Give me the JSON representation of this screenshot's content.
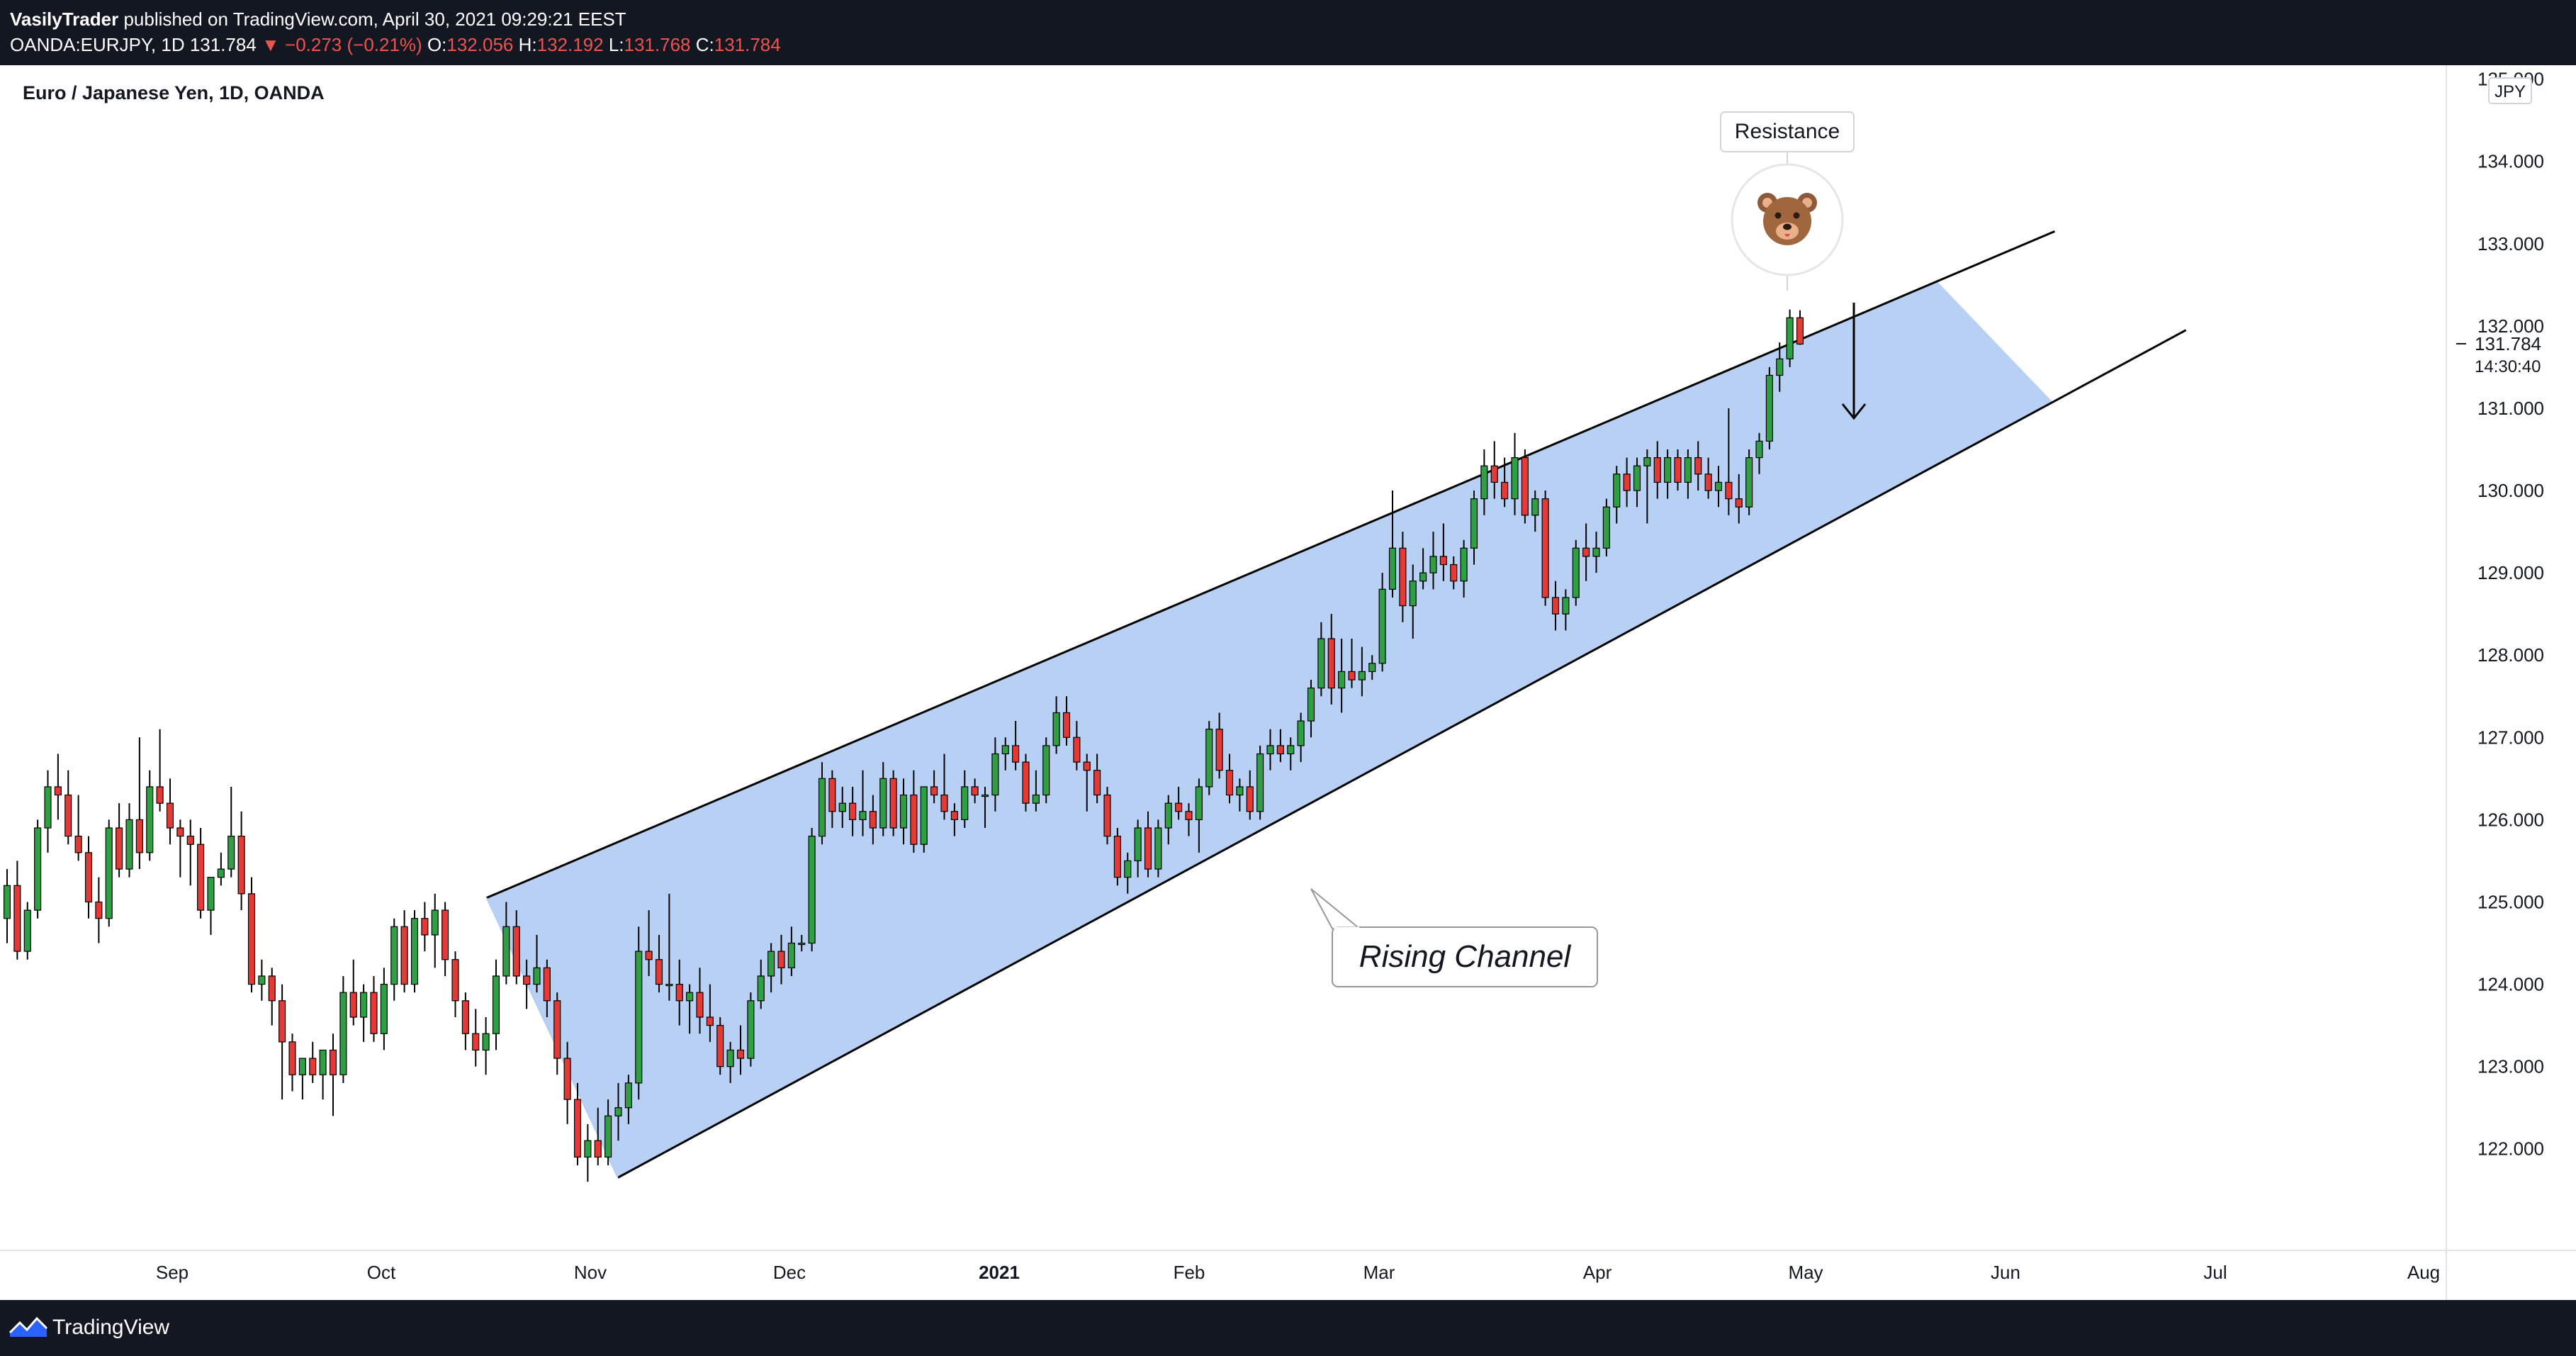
{
  "header": {
    "author": "VasilyTrader",
    "published_text": " published on TradingView.com, April 30, 2021 09:29:21 EEST",
    "symbol": "OANDA:EURJPY, 1D",
    "last": "131.784",
    "change": "▼ −0.273 (−0.21%)",
    "o_label": "O:",
    "o_value": "132.056",
    "h_label": "H:",
    "h_value": "132.192",
    "l_label": "L:",
    "l_value": "131.768",
    "c_label": "C:",
    "c_value": "131.784"
  },
  "footer": {
    "brand": "TradingView"
  },
  "chart_data": {
    "type": "candlestick",
    "title": "Euro / Japanese Yen, 1D, OANDA",
    "currency": "JPY",
    "y_ticks": [
      "122.000",
      "123.000",
      "124.000",
      "125.000",
      "126.000",
      "127.000",
      "128.000",
      "129.000",
      "130.000",
      "131.000",
      "132.000",
      "133.000",
      "134.000",
      "135.000"
    ],
    "y_range": [
      121.3,
      135.1
    ],
    "x_labels": [
      "Sep",
      "Oct",
      "Nov",
      "Dec",
      "2021",
      "Feb",
      "Mar",
      "Apr",
      "May",
      "Jun",
      "Jul",
      "Aug"
    ],
    "last_price_label": "131.784",
    "countdown": "14:30:40",
    "colors": {
      "up": "#26a69a",
      "down": "#ef5350",
      "channel_fill": "#b3cdf3",
      "line": "#000000"
    },
    "annotations": {
      "resistance_label": "Resistance",
      "pattern_label": "Rising Channel",
      "bear_emoji": "🐻"
    },
    "channel": {
      "upper_line": [
        {
          "date": "2020-10-09",
          "price": 125.05
        },
        {
          "date": "2021-05-24",
          "price": 133.15
        }
      ],
      "lower_line": [
        {
          "date": "2020-10-28",
          "price": 121.65
        },
        {
          "date": "2021-06-12",
          "price": 131.95
        }
      ]
    },
    "candles": [
      {
        "o": 124.8,
        "h": 125.4,
        "l": 124.5,
        "c": 125.2
      },
      {
        "o": 125.2,
        "h": 125.5,
        "l": 124.3,
        "c": 124.4
      },
      {
        "o": 124.4,
        "h": 125.0,
        "l": 124.3,
        "c": 124.9
      },
      {
        "o": 124.9,
        "h": 126.0,
        "l": 124.8,
        "c": 125.9
      },
      {
        "o": 125.9,
        "h": 126.6,
        "l": 125.6,
        "c": 126.4
      },
      {
        "o": 126.4,
        "h": 126.8,
        "l": 126.0,
        "c": 126.3
      },
      {
        "o": 126.3,
        "h": 126.6,
        "l": 125.7,
        "c": 125.8
      },
      {
        "o": 125.8,
        "h": 126.3,
        "l": 125.5,
        "c": 125.6
      },
      {
        "o": 125.6,
        "h": 125.8,
        "l": 124.8,
        "c": 125.0
      },
      {
        "o": 125.0,
        "h": 125.3,
        "l": 124.5,
        "c": 124.8
      },
      {
        "o": 124.8,
        "h": 126.0,
        "l": 124.7,
        "c": 125.9
      },
      {
        "o": 125.9,
        "h": 126.2,
        "l": 125.3,
        "c": 125.4
      },
      {
        "o": 125.4,
        "h": 126.2,
        "l": 125.3,
        "c": 126.0
      },
      {
        "o": 126.0,
        "h": 127.0,
        "l": 125.4,
        "c": 125.6
      },
      {
        "o": 125.6,
        "h": 126.6,
        "l": 125.5,
        "c": 126.4
      },
      {
        "o": 126.4,
        "h": 127.1,
        "l": 126.1,
        "c": 126.2
      },
      {
        "o": 126.2,
        "h": 126.5,
        "l": 125.7,
        "c": 125.9
      },
      {
        "o": 125.9,
        "h": 126.0,
        "l": 125.3,
        "c": 125.8
      },
      {
        "o": 125.8,
        "h": 126.0,
        "l": 125.2,
        "c": 125.7
      },
      {
        "o": 125.7,
        "h": 125.9,
        "l": 124.8,
        "c": 124.9
      },
      {
        "o": 124.9,
        "h": 125.3,
        "l": 124.6,
        "c": 125.3
      },
      {
        "o": 125.3,
        "h": 125.6,
        "l": 125.2,
        "c": 125.4
      },
      {
        "o": 125.4,
        "h": 126.4,
        "l": 125.3,
        "c": 125.8
      },
      {
        "o": 125.8,
        "h": 126.1,
        "l": 124.9,
        "c": 125.1
      },
      {
        "o": 125.1,
        "h": 125.3,
        "l": 123.9,
        "c": 124.0
      },
      {
        "o": 124.0,
        "h": 124.3,
        "l": 123.8,
        "c": 124.1
      },
      {
        "o": 124.1,
        "h": 124.2,
        "l": 123.5,
        "c": 123.8
      },
      {
        "o": 123.8,
        "h": 124.0,
        "l": 122.6,
        "c": 123.3
      },
      {
        "o": 123.3,
        "h": 123.4,
        "l": 122.7,
        "c": 122.9
      },
      {
        "o": 122.9,
        "h": 123.1,
        "l": 122.6,
        "c": 123.1
      },
      {
        "o": 123.1,
        "h": 123.3,
        "l": 122.8,
        "c": 122.9
      },
      {
        "o": 122.9,
        "h": 123.2,
        "l": 122.6,
        "c": 123.2
      },
      {
        "o": 123.2,
        "h": 123.4,
        "l": 122.4,
        "c": 122.9
      },
      {
        "o": 122.9,
        "h": 124.1,
        "l": 122.8,
        "c": 123.9
      },
      {
        "o": 123.9,
        "h": 124.3,
        "l": 123.5,
        "c": 123.6
      },
      {
        "o": 123.6,
        "h": 124.0,
        "l": 123.3,
        "c": 123.9
      },
      {
        "o": 123.9,
        "h": 124.1,
        "l": 123.3,
        "c": 123.4
      },
      {
        "o": 123.4,
        "h": 124.2,
        "l": 123.2,
        "c": 124.0
      },
      {
        "o": 124.0,
        "h": 124.8,
        "l": 123.8,
        "c": 124.7
      },
      {
        "o": 124.7,
        "h": 124.9,
        "l": 123.9,
        "c": 124.0
      },
      {
        "o": 124.0,
        "h": 124.9,
        "l": 123.9,
        "c": 124.8
      },
      {
        "o": 124.8,
        "h": 125.0,
        "l": 124.4,
        "c": 124.6
      },
      {
        "o": 124.6,
        "h": 125.1,
        "l": 124.2,
        "c": 124.9
      },
      {
        "o": 124.9,
        "h": 125.0,
        "l": 124.1,
        "c": 124.3
      },
      {
        "o": 124.3,
        "h": 124.4,
        "l": 123.6,
        "c": 123.8
      },
      {
        "o": 123.8,
        "h": 123.9,
        "l": 123.2,
        "c": 123.4
      },
      {
        "o": 123.4,
        "h": 123.7,
        "l": 123.0,
        "c": 123.2
      },
      {
        "o": 123.2,
        "h": 123.6,
        "l": 122.9,
        "c": 123.4
      },
      {
        "o": 123.4,
        "h": 124.3,
        "l": 123.2,
        "c": 124.1
      },
      {
        "o": 124.1,
        "h": 125.0,
        "l": 124.0,
        "c": 124.7
      },
      {
        "o": 124.7,
        "h": 124.9,
        "l": 124.0,
        "c": 124.1
      },
      {
        "o": 124.1,
        "h": 124.3,
        "l": 123.7,
        "c": 124.0
      },
      {
        "o": 124.0,
        "h": 124.6,
        "l": 123.9,
        "c": 124.2
      },
      {
        "o": 124.2,
        "h": 124.3,
        "l": 123.6,
        "c": 123.8
      },
      {
        "o": 123.8,
        "h": 123.9,
        "l": 122.9,
        "c": 123.1
      },
      {
        "o": 123.1,
        "h": 123.3,
        "l": 122.3,
        "c": 122.6
      },
      {
        "o": 122.6,
        "h": 122.8,
        "l": 121.8,
        "c": 121.9
      },
      {
        "o": 121.9,
        "h": 122.3,
        "l": 121.6,
        "c": 122.1
      },
      {
        "o": 122.1,
        "h": 122.5,
        "l": 121.8,
        "c": 121.9
      },
      {
        "o": 121.9,
        "h": 122.6,
        "l": 121.8,
        "c": 122.4
      },
      {
        "o": 122.4,
        "h": 122.8,
        "l": 122.1,
        "c": 122.5
      },
      {
        "o": 122.5,
        "h": 122.9,
        "l": 122.3,
        "c": 122.8
      },
      {
        "o": 122.8,
        "h": 124.7,
        "l": 122.6,
        "c": 124.4
      },
      {
        "o": 124.4,
        "h": 124.9,
        "l": 124.1,
        "c": 124.3
      },
      {
        "o": 124.3,
        "h": 124.6,
        "l": 123.9,
        "c": 124.0
      },
      {
        "o": 124.0,
        "h": 125.1,
        "l": 123.8,
        "c": 124.0
      },
      {
        "o": 124.0,
        "h": 124.3,
        "l": 123.5,
        "c": 123.8
      },
      {
        "o": 123.8,
        "h": 124.0,
        "l": 123.4,
        "c": 123.9
      },
      {
        "o": 123.9,
        "h": 124.2,
        "l": 123.4,
        "c": 123.6
      },
      {
        "o": 123.6,
        "h": 124.0,
        "l": 123.3,
        "c": 123.5
      },
      {
        "o": 123.5,
        "h": 123.6,
        "l": 122.9,
        "c": 123.0
      },
      {
        "o": 123.0,
        "h": 123.3,
        "l": 122.8,
        "c": 123.2
      },
      {
        "o": 123.2,
        "h": 123.5,
        "l": 122.9,
        "c": 123.1
      },
      {
        "o": 123.1,
        "h": 123.9,
        "l": 123.0,
        "c": 123.8
      },
      {
        "o": 123.8,
        "h": 124.3,
        "l": 123.7,
        "c": 124.1
      },
      {
        "o": 124.1,
        "h": 124.5,
        "l": 123.9,
        "c": 124.4
      },
      {
        "o": 124.4,
        "h": 124.6,
        "l": 124.0,
        "c": 124.2
      },
      {
        "o": 124.2,
        "h": 124.7,
        "l": 124.1,
        "c": 124.5
      },
      {
        "o": 124.5,
        "h": 124.6,
        "l": 124.4,
        "c": 124.5
      },
      {
        "o": 124.5,
        "h": 125.9,
        "l": 124.4,
        "c": 125.8
      },
      {
        "o": 125.8,
        "h": 126.7,
        "l": 125.7,
        "c": 126.5
      },
      {
        "o": 126.5,
        "h": 126.6,
        "l": 125.9,
        "c": 126.1
      },
      {
        "o": 126.1,
        "h": 126.4,
        "l": 125.9,
        "c": 126.2
      },
      {
        "o": 126.2,
        "h": 126.4,
        "l": 125.8,
        "c": 126.0
      },
      {
        "o": 126.0,
        "h": 126.6,
        "l": 125.8,
        "c": 126.1
      },
      {
        "o": 126.1,
        "h": 126.3,
        "l": 125.7,
        "c": 125.9
      },
      {
        "o": 125.9,
        "h": 126.7,
        "l": 125.8,
        "c": 126.5
      },
      {
        "o": 126.5,
        "h": 126.6,
        "l": 125.8,
        "c": 125.9
      },
      {
        "o": 125.9,
        "h": 126.5,
        "l": 125.7,
        "c": 126.3
      },
      {
        "o": 126.3,
        "h": 126.6,
        "l": 125.6,
        "c": 125.7
      },
      {
        "o": 125.7,
        "h": 126.4,
        "l": 125.6,
        "c": 126.4
      },
      {
        "o": 126.4,
        "h": 126.6,
        "l": 126.2,
        "c": 126.3
      },
      {
        "o": 126.3,
        "h": 126.8,
        "l": 126.0,
        "c": 126.1
      },
      {
        "o": 126.1,
        "h": 126.2,
        "l": 125.8,
        "c": 126.0
      },
      {
        "o": 126.0,
        "h": 126.6,
        "l": 125.9,
        "c": 126.4
      },
      {
        "o": 126.4,
        "h": 126.5,
        "l": 126.2,
        "c": 126.3
      },
      {
        "o": 126.3,
        "h": 126.4,
        "l": 125.9,
        "c": 126.3
      },
      {
        "o": 126.3,
        "h": 127.0,
        "l": 126.1,
        "c": 126.8
      },
      {
        "o": 126.8,
        "h": 127.0,
        "l": 126.6,
        "c": 126.9
      },
      {
        "o": 126.9,
        "h": 127.2,
        "l": 126.6,
        "c": 126.7
      },
      {
        "o": 126.7,
        "h": 126.8,
        "l": 126.1,
        "c": 126.2
      },
      {
        "o": 126.2,
        "h": 126.6,
        "l": 126.1,
        "c": 126.3
      },
      {
        "o": 126.3,
        "h": 127.0,
        "l": 126.2,
        "c": 126.9
      },
      {
        "o": 126.9,
        "h": 127.5,
        "l": 126.8,
        "c": 127.3
      },
      {
        "o": 127.3,
        "h": 127.5,
        "l": 126.9,
        "c": 127.0
      },
      {
        "o": 127.0,
        "h": 127.2,
        "l": 126.6,
        "c": 126.7
      },
      {
        "o": 126.7,
        "h": 126.8,
        "l": 126.1,
        "c": 126.6
      },
      {
        "o": 126.6,
        "h": 126.8,
        "l": 126.2,
        "c": 126.3
      },
      {
        "o": 126.3,
        "h": 126.4,
        "l": 125.7,
        "c": 125.8
      },
      {
        "o": 125.8,
        "h": 125.9,
        "l": 125.2,
        "c": 125.3
      },
      {
        "o": 125.3,
        "h": 125.6,
        "l": 125.1,
        "c": 125.5
      },
      {
        "o": 125.5,
        "h": 126.0,
        "l": 125.3,
        "c": 125.9
      },
      {
        "o": 125.9,
        "h": 126.1,
        "l": 125.3,
        "c": 125.4
      },
      {
        "o": 125.4,
        "h": 126.0,
        "l": 125.3,
        "c": 125.9
      },
      {
        "o": 125.9,
        "h": 126.3,
        "l": 125.7,
        "c": 126.2
      },
      {
        "o": 126.2,
        "h": 126.4,
        "l": 126.0,
        "c": 126.1
      },
      {
        "o": 126.1,
        "h": 126.2,
        "l": 125.8,
        "c": 126.0
      },
      {
        "o": 126.0,
        "h": 126.5,
        "l": 125.6,
        "c": 126.4
      },
      {
        "o": 126.4,
        "h": 127.2,
        "l": 126.3,
        "c": 127.1
      },
      {
        "o": 127.1,
        "h": 127.3,
        "l": 126.5,
        "c": 126.6
      },
      {
        "o": 126.6,
        "h": 126.8,
        "l": 126.2,
        "c": 126.3
      },
      {
        "o": 126.3,
        "h": 126.5,
        "l": 126.1,
        "c": 126.4
      },
      {
        "o": 126.4,
        "h": 126.6,
        "l": 126.0,
        "c": 126.1
      },
      {
        "o": 126.1,
        "h": 126.9,
        "l": 126.0,
        "c": 126.8
      },
      {
        "o": 126.8,
        "h": 127.1,
        "l": 126.6,
        "c": 126.9
      },
      {
        "o": 126.9,
        "h": 127.1,
        "l": 126.7,
        "c": 126.8
      },
      {
        "o": 126.8,
        "h": 127.0,
        "l": 126.6,
        "c": 126.9
      },
      {
        "o": 126.9,
        "h": 127.3,
        "l": 126.7,
        "c": 127.2
      },
      {
        "o": 127.2,
        "h": 127.7,
        "l": 127.0,
        "c": 127.6
      },
      {
        "o": 127.6,
        "h": 128.4,
        "l": 127.5,
        "c": 128.2
      },
      {
        "o": 128.2,
        "h": 128.5,
        "l": 127.4,
        "c": 127.6
      },
      {
        "o": 127.6,
        "h": 128.2,
        "l": 127.3,
        "c": 127.8
      },
      {
        "o": 127.8,
        "h": 128.2,
        "l": 127.6,
        "c": 127.7
      },
      {
        "o": 127.7,
        "h": 128.1,
        "l": 127.5,
        "c": 127.8
      },
      {
        "o": 127.8,
        "h": 128.0,
        "l": 127.7,
        "c": 127.9
      },
      {
        "o": 127.9,
        "h": 129.0,
        "l": 127.8,
        "c": 128.8
      },
      {
        "o": 128.8,
        "h": 130.0,
        "l": 128.7,
        "c": 129.3
      },
      {
        "o": 129.3,
        "h": 129.5,
        "l": 128.4,
        "c": 128.6
      },
      {
        "o": 128.6,
        "h": 129.1,
        "l": 128.2,
        "c": 128.9
      },
      {
        "o": 128.9,
        "h": 129.3,
        "l": 128.8,
        "c": 129.0
      },
      {
        "o": 129.0,
        "h": 129.5,
        "l": 128.8,
        "c": 129.2
      },
      {
        "o": 129.2,
        "h": 129.6,
        "l": 128.9,
        "c": 129.1
      },
      {
        "o": 129.1,
        "h": 129.2,
        "l": 128.8,
        "c": 128.9
      },
      {
        "o": 128.9,
        "h": 129.4,
        "l": 128.7,
        "c": 129.3
      },
      {
        "o": 129.3,
        "h": 130.0,
        "l": 129.1,
        "c": 129.9
      },
      {
        "o": 129.9,
        "h": 130.5,
        "l": 129.7,
        "c": 130.3
      },
      {
        "o": 130.3,
        "h": 130.6,
        "l": 129.9,
        "c": 130.1
      },
      {
        "o": 130.1,
        "h": 130.4,
        "l": 129.8,
        "c": 129.9
      },
      {
        "o": 129.9,
        "h": 130.7,
        "l": 129.7,
        "c": 130.4
      },
      {
        "o": 130.4,
        "h": 130.5,
        "l": 129.6,
        "c": 129.7
      },
      {
        "o": 129.7,
        "h": 130.0,
        "l": 129.5,
        "c": 129.9
      },
      {
        "o": 129.9,
        "h": 130.0,
        "l": 128.6,
        "c": 128.7
      },
      {
        "o": 128.7,
        "h": 128.9,
        "l": 128.3,
        "c": 128.5
      },
      {
        "o": 128.5,
        "h": 128.8,
        "l": 128.3,
        "c": 128.7
      },
      {
        "o": 128.7,
        "h": 129.4,
        "l": 128.6,
        "c": 129.3
      },
      {
        "o": 129.3,
        "h": 129.6,
        "l": 128.9,
        "c": 129.2
      },
      {
        "o": 129.2,
        "h": 129.5,
        "l": 129.0,
        "c": 129.3
      },
      {
        "o": 129.3,
        "h": 129.9,
        "l": 129.2,
        "c": 129.8
      },
      {
        "o": 129.8,
        "h": 130.3,
        "l": 129.6,
        "c": 130.2
      },
      {
        "o": 130.2,
        "h": 130.4,
        "l": 129.8,
        "c": 130.0
      },
      {
        "o": 130.0,
        "h": 130.4,
        "l": 129.8,
        "c": 130.3
      },
      {
        "o": 130.3,
        "h": 130.5,
        "l": 129.6,
        "c": 130.4
      },
      {
        "o": 130.4,
        "h": 130.6,
        "l": 129.9,
        "c": 130.1
      },
      {
        "o": 130.1,
        "h": 130.5,
        "l": 129.9,
        "c": 130.4
      },
      {
        "o": 130.4,
        "h": 130.5,
        "l": 130.0,
        "c": 130.1
      },
      {
        "o": 130.1,
        "h": 130.5,
        "l": 129.9,
        "c": 130.4
      },
      {
        "o": 130.4,
        "h": 130.6,
        "l": 130.0,
        "c": 130.2
      },
      {
        "o": 130.2,
        "h": 130.4,
        "l": 129.9,
        "c": 130.0
      },
      {
        "o": 130.0,
        "h": 130.3,
        "l": 129.8,
        "c": 130.1
      },
      {
        "o": 130.1,
        "h": 131.0,
        "l": 129.7,
        "c": 129.9
      },
      {
        "o": 129.9,
        "h": 130.2,
        "l": 129.6,
        "c": 129.8
      },
      {
        "o": 129.8,
        "h": 130.5,
        "l": 129.7,
        "c": 130.4
      },
      {
        "o": 130.4,
        "h": 130.7,
        "l": 130.2,
        "c": 130.6
      },
      {
        "o": 130.6,
        "h": 131.5,
        "l": 130.5,
        "c": 131.4
      },
      {
        "o": 131.4,
        "h": 131.8,
        "l": 131.2,
        "c": 131.6
      },
      {
        "o": 131.6,
        "h": 132.2,
        "l": 131.5,
        "c": 132.1
      },
      {
        "o": 132.1,
        "h": 132.19,
        "l": 131.77,
        "c": 131.78
      }
    ]
  }
}
